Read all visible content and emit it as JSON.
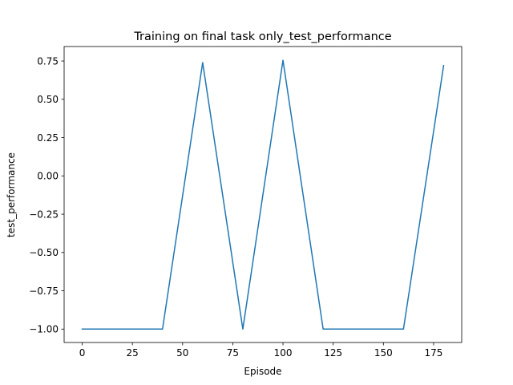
{
  "chart_data": {
    "type": "line",
    "title": "Training on final task only_test_performance",
    "xlabel": "Episode",
    "ylabel": "test_performance",
    "xlim": [
      -9,
      189
    ],
    "ylim": [
      -1.0875,
      0.8445
    ],
    "xticks": [
      0,
      25,
      50,
      75,
      100,
      125,
      150,
      175
    ],
    "xtick_labels": [
      "0",
      "25",
      "50",
      "75",
      "100",
      "125",
      "150",
      "175"
    ],
    "yticks": [
      -1.0,
      -0.75,
      -0.5,
      -0.25,
      0.0,
      0.25,
      0.5,
      0.75
    ],
    "ytick_labels": [
      "−1.00",
      "−0.75",
      "−0.50",
      "−0.25",
      "0.00",
      "0.25",
      "0.50",
      "0.75"
    ],
    "grid": false,
    "series": [
      {
        "color": "#1f77b4",
        "x": [
          0,
          20,
          40,
          60,
          80,
          100,
          120,
          140,
          160,
          180
        ],
        "values": [
          -1.0,
          -1.0,
          -1.0,
          0.74,
          -1.0,
          0.755,
          -1.0,
          -1.0,
          -1.0,
          0.72
        ]
      }
    ]
  }
}
